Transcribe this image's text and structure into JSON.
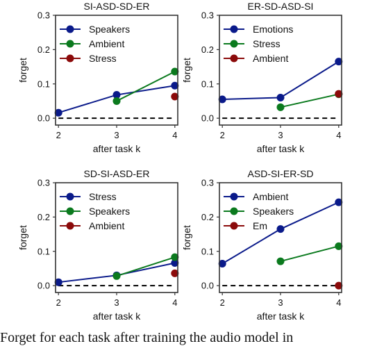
{
  "caption": "Forget for each task after training the audio model in",
  "chart_data": [
    {
      "type": "line",
      "title": "SI-ASD-SD-ER",
      "xlabel": "after task k",
      "ylabel": "forget",
      "x_ticks": [
        2,
        3,
        4
      ],
      "y_ticks": [
        "0.0",
        "0.1",
        "0.2",
        "0.3"
      ],
      "xlim": [
        1.95,
        4.05
      ],
      "ylim": [
        -0.02,
        0.3
      ],
      "legend": "top-left",
      "series": [
        {
          "name": "Speakers",
          "color": "#0a1a8a",
          "x": [
            2,
            3,
            4
          ],
          "y": [
            0.016,
            0.068,
            0.095
          ]
        },
        {
          "name": "Ambient",
          "color": "#0b7a1e",
          "x": [
            3,
            4
          ],
          "y": [
            0.05,
            0.136
          ]
        },
        {
          "name": "Stress",
          "color": "#8b0a0a",
          "x": [
            4
          ],
          "y": [
            0.063
          ]
        }
      ]
    },
    {
      "type": "line",
      "title": "ER-SD-ASD-SI",
      "xlabel": "after task k",
      "ylabel": "forget",
      "x_ticks": [
        2,
        3,
        4
      ],
      "y_ticks": [
        "0.0",
        "0.1",
        "0.2",
        "0.3"
      ],
      "xlim": [
        1.95,
        4.05
      ],
      "ylim": [
        -0.02,
        0.3
      ],
      "legend": "top-left",
      "series": [
        {
          "name": "Emotions",
          "color": "#0a1a8a",
          "x": [
            2,
            3,
            4
          ],
          "y": [
            0.055,
            0.06,
            0.165
          ]
        },
        {
          "name": "Stress",
          "color": "#0b7a1e",
          "x": [
            3,
            4
          ],
          "y": [
            0.032,
            0.07
          ]
        },
        {
          "name": "Ambient",
          "color": "#8b0a0a",
          "x": [
            4
          ],
          "y": [
            0.071
          ]
        }
      ]
    },
    {
      "type": "line",
      "title": "SD-SI-ASD-ER",
      "xlabel": "after task k",
      "ylabel": "forget",
      "x_ticks": [
        2,
        3,
        4
      ],
      "y_ticks": [
        "0.0",
        "0.1",
        "0.2",
        "0.3"
      ],
      "xlim": [
        1.95,
        4.05
      ],
      "ylim": [
        -0.02,
        0.3
      ],
      "legend": "top-left",
      "series": [
        {
          "name": "Stress",
          "color": "#0a1a8a",
          "x": [
            2,
            3,
            4
          ],
          "y": [
            0.01,
            0.03,
            0.066
          ]
        },
        {
          "name": "Speakers",
          "color": "#0b7a1e",
          "x": [
            3,
            4
          ],
          "y": [
            0.028,
            0.083
          ]
        },
        {
          "name": "Ambient",
          "color": "#8b0a0a",
          "x": [
            4
          ],
          "y": [
            0.036
          ]
        }
      ]
    },
    {
      "type": "line",
      "title": "ASD-SI-ER-SD",
      "xlabel": "after task k",
      "ylabel": "forget",
      "x_ticks": [
        2,
        3,
        4
      ],
      "y_ticks": [
        "0.0",
        "0.1",
        "0.2",
        "0.3"
      ],
      "xlim": [
        1.95,
        4.05
      ],
      "ylim": [
        -0.02,
        0.3
      ],
      "legend": "top-left",
      "series": [
        {
          "name": "Ambient",
          "color": "#0a1a8a",
          "x": [
            2,
            3,
            4
          ],
          "y": [
            0.064,
            0.165,
            0.243
          ]
        },
        {
          "name": "Speakers",
          "color": "#0b7a1e",
          "x": [
            3,
            4
          ],
          "y": [
            0.071,
            0.115
          ]
        },
        {
          "name": "Em",
          "color": "#8b0a0a",
          "x": [
            4
          ],
          "y": [
            0.0
          ]
        }
      ]
    }
  ]
}
